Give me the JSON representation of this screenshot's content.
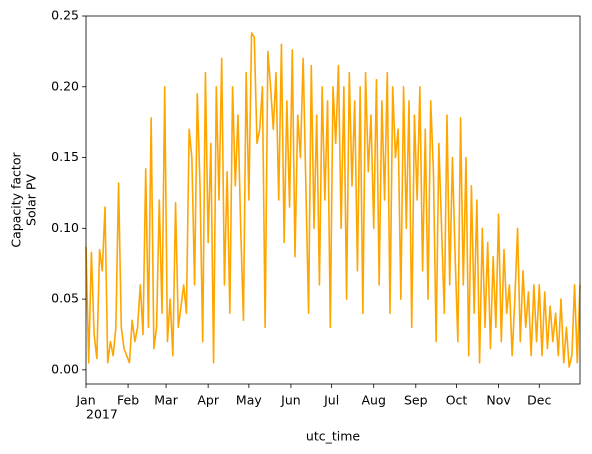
{
  "chart_data": {
    "type": "line",
    "ylabel": [
      "Capacity factor",
      "Solar PV"
    ],
    "xlabel": "utc_time",
    "x_year_label": "2017",
    "xlim": [
      "2017-01-01",
      "2017-12-31"
    ],
    "ylim": [
      -0.01,
      0.25
    ],
    "yticks": [
      {
        "value": 0,
        "label": "0.00"
      },
      {
        "value": 0.05,
        "label": "0.05"
      },
      {
        "value": 0.1,
        "label": "0.10"
      },
      {
        "value": 0.15,
        "label": "0.15"
      },
      {
        "value": 0.2,
        "label": "0.20"
      },
      {
        "value": 0.25,
        "label": "0.25"
      }
    ],
    "xticks": [
      {
        "value": "2017-01-01",
        "label": "Jan"
      },
      {
        "value": "2017-02-01",
        "label": "Feb"
      },
      {
        "value": "2017-03-01",
        "label": "Mar"
      },
      {
        "value": "2017-04-01",
        "label": "Apr"
      },
      {
        "value": "2017-05-01",
        "label": "May"
      },
      {
        "value": "2017-06-01",
        "label": "Jun"
      },
      {
        "value": "2017-07-01",
        "label": "Jul"
      },
      {
        "value": "2017-08-01",
        "label": "Aug"
      },
      {
        "value": "2017-09-01",
        "label": "Sep"
      },
      {
        "value": "2017-10-01",
        "label": "Oct"
      },
      {
        "value": "2017-11-01",
        "label": "Nov"
      },
      {
        "value": "2017-12-01",
        "label": "Dec"
      }
    ],
    "x": [
      "2017-01-01",
      "2017-01-03",
      "2017-01-05",
      "2017-01-07",
      "2017-01-09",
      "2017-01-11",
      "2017-01-13",
      "2017-01-15",
      "2017-01-17",
      "2017-01-19",
      "2017-01-21",
      "2017-01-23",
      "2017-01-25",
      "2017-01-27",
      "2017-01-29",
      "2017-01-31",
      "2017-02-02",
      "2017-02-04",
      "2017-02-06",
      "2017-02-08",
      "2017-02-10",
      "2017-02-12",
      "2017-02-14",
      "2017-02-16",
      "2017-02-18",
      "2017-02-20",
      "2017-02-22",
      "2017-02-24",
      "2017-02-26",
      "2017-02-28",
      "2017-03-02",
      "2017-03-04",
      "2017-03-06",
      "2017-03-08",
      "2017-03-10",
      "2017-03-12",
      "2017-03-14",
      "2017-03-16",
      "2017-03-18",
      "2017-03-20",
      "2017-03-22",
      "2017-03-24",
      "2017-03-26",
      "2017-03-28",
      "2017-03-30",
      "2017-04-01",
      "2017-04-03",
      "2017-04-05",
      "2017-04-07",
      "2017-04-09",
      "2017-04-11",
      "2017-04-13",
      "2017-04-15",
      "2017-04-17",
      "2017-04-19",
      "2017-04-21",
      "2017-04-23",
      "2017-04-25",
      "2017-04-27",
      "2017-04-29",
      "2017-05-01",
      "2017-05-03",
      "2017-05-05",
      "2017-05-07",
      "2017-05-09",
      "2017-05-11",
      "2017-05-13",
      "2017-05-15",
      "2017-05-17",
      "2017-05-19",
      "2017-05-21",
      "2017-05-23",
      "2017-05-25",
      "2017-05-27",
      "2017-05-29",
      "2017-05-31",
      "2017-06-02",
      "2017-06-04",
      "2017-06-06",
      "2017-06-08",
      "2017-06-10",
      "2017-06-12",
      "2017-06-14",
      "2017-06-16",
      "2017-06-18",
      "2017-06-20",
      "2017-06-22",
      "2017-06-24",
      "2017-06-26",
      "2017-06-28",
      "2017-06-30",
      "2017-07-02",
      "2017-07-04",
      "2017-07-06",
      "2017-07-08",
      "2017-07-10",
      "2017-07-12",
      "2017-07-14",
      "2017-07-16",
      "2017-07-18",
      "2017-07-20",
      "2017-07-22",
      "2017-07-24",
      "2017-07-26",
      "2017-07-28",
      "2017-07-30",
      "2017-08-01",
      "2017-08-03",
      "2017-08-05",
      "2017-08-07",
      "2017-08-09",
      "2017-08-11",
      "2017-08-13",
      "2017-08-15",
      "2017-08-17",
      "2017-08-19",
      "2017-08-21",
      "2017-08-23",
      "2017-08-25",
      "2017-08-27",
      "2017-08-29",
      "2017-08-31",
      "2017-09-02",
      "2017-09-04",
      "2017-09-06",
      "2017-09-08",
      "2017-09-10",
      "2017-09-12",
      "2017-09-14",
      "2017-09-16",
      "2017-09-18",
      "2017-09-20",
      "2017-09-22",
      "2017-09-24",
      "2017-09-26",
      "2017-09-28",
      "2017-09-30",
      "2017-10-02",
      "2017-10-04",
      "2017-10-06",
      "2017-10-08",
      "2017-10-10",
      "2017-10-12",
      "2017-10-14",
      "2017-10-16",
      "2017-10-18",
      "2017-10-20",
      "2017-10-22",
      "2017-10-24",
      "2017-10-26",
      "2017-10-28",
      "2017-10-30",
      "2017-11-01",
      "2017-11-03",
      "2017-11-05",
      "2017-11-07",
      "2017-11-09",
      "2017-11-11",
      "2017-11-13",
      "2017-11-15",
      "2017-11-17",
      "2017-11-19",
      "2017-11-21",
      "2017-11-23",
      "2017-11-25",
      "2017-11-27",
      "2017-11-29",
      "2017-12-01",
      "2017-12-03",
      "2017-12-05",
      "2017-12-07",
      "2017-12-09",
      "2017-12-11",
      "2017-12-13",
      "2017-12-15",
      "2017-12-17",
      "2017-12-19",
      "2017-12-21",
      "2017-12-23",
      "2017-12-25",
      "2017-12-27",
      "2017-12-29",
      "2017-12-31"
    ],
    "series": [
      {
        "color": "#ffa500",
        "values": [
          0.087,
          0.005,
          0.083,
          0.025,
          0.008,
          0.085,
          0.07,
          0.115,
          0.005,
          0.02,
          0.01,
          0.03,
          0.132,
          0.03,
          0.015,
          0.01,
          0.005,
          0.035,
          0.02,
          0.03,
          0.06,
          0.025,
          0.142,
          0.03,
          0.178,
          0.015,
          0.03,
          0.12,
          0.04,
          0.2,
          0.02,
          0.05,
          0.01,
          0.118,
          0.03,
          0.045,
          0.06,
          0.04,
          0.17,
          0.15,
          0.06,
          0.195,
          0.13,
          0.02,
          0.21,
          0.09,
          0.16,
          0.005,
          0.2,
          0.12,
          0.22,
          0.06,
          0.14,
          0.04,
          0.2,
          0.13,
          0.18,
          0.1,
          0.035,
          0.21,
          0.12,
          0.238,
          0.235,
          0.16,
          0.17,
          0.2,
          0.03,
          0.225,
          0.2,
          0.17,
          0.21,
          0.12,
          0.23,
          0.09,
          0.19,
          0.115,
          0.226,
          0.08,
          0.18,
          0.15,
          0.22,
          0.13,
          0.04,
          0.215,
          0.1,
          0.18,
          0.06,
          0.2,
          0.12,
          0.19,
          0.03,
          0.2,
          0.16,
          0.215,
          0.1,
          0.2,
          0.05,
          0.21,
          0.13,
          0.19,
          0.07,
          0.2,
          0.04,
          0.21,
          0.14,
          0.18,
          0.1,
          0.205,
          0.06,
          0.19,
          0.12,
          0.21,
          0.04,
          0.2,
          0.15,
          0.17,
          0.05,
          0.2,
          0.1,
          0.19,
          0.03,
          0.18,
          0.12,
          0.2,
          0.07,
          0.17,
          0.05,
          0.19,
          0.14,
          0.02,
          0.16,
          0.1,
          0.04,
          0.18,
          0.06,
          0.15,
          0.08,
          0.02,
          0.178,
          0.06,
          0.15,
          0.01,
          0.13,
          0.04,
          0.12,
          0.005,
          0.1,
          0.03,
          0.09,
          0.015,
          0.08,
          0.03,
          0.11,
          0.02,
          0.085,
          0.04,
          0.06,
          0.01,
          0.05,
          0.1,
          0.02,
          0.07,
          0.03,
          0.055,
          0.01,
          0.06,
          0.02,
          0.06,
          0.01,
          0.055,
          0.015,
          0.045,
          0.02,
          0.04,
          0.01,
          0.05,
          0.005,
          0.03,
          0.002,
          0.01,
          0.06,
          0.005,
          0.06
        ]
      }
    ]
  }
}
